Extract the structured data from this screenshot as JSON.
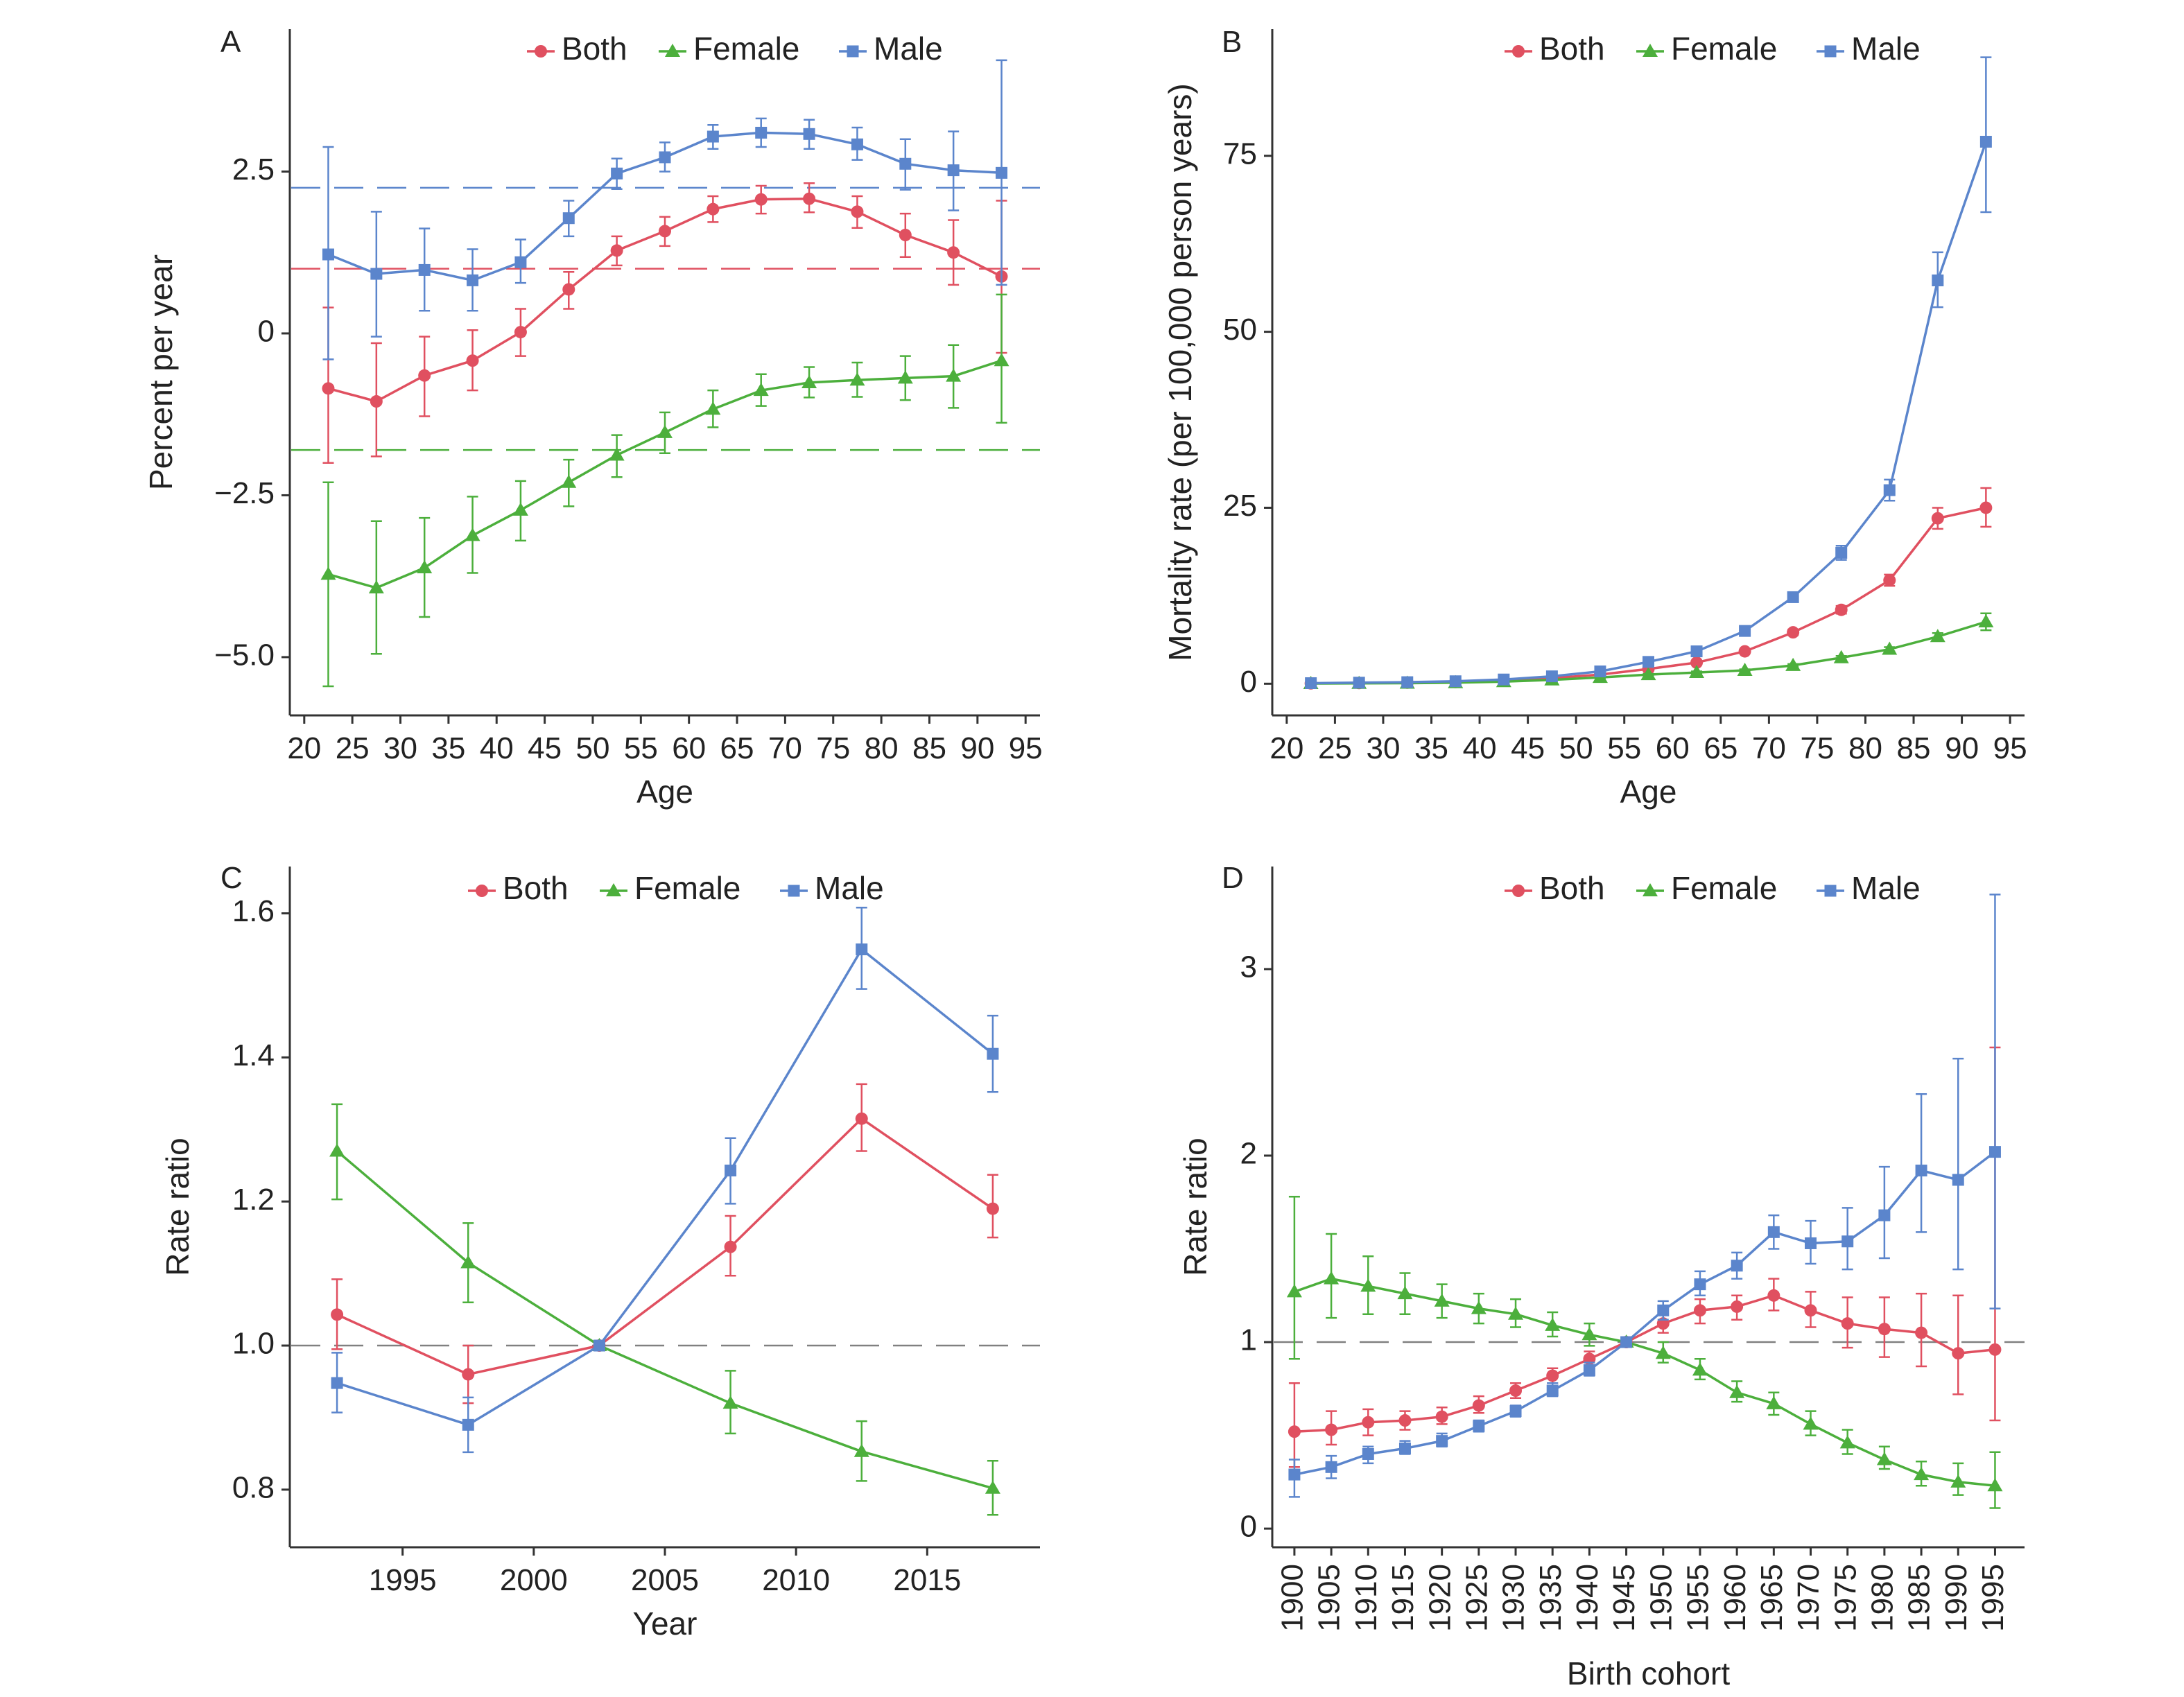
{
  "colors": {
    "Both": "#e05060",
    "Female": "#4caf3c",
    "Male": "#5b85cc",
    "reference_gray": "#808080"
  },
  "chart_data": [
    {
      "id": "A",
      "panel_label": "A",
      "type": "line",
      "xlabel": "Age",
      "ylabel": "Percent per year",
      "xlim": [
        18.5,
        96.5
      ],
      "ylim": [
        -5.9,
        4.7
      ],
      "x_ticks": [
        20,
        25,
        30,
        35,
        40,
        45,
        50,
        55,
        60,
        65,
        70,
        75,
        80,
        85,
        90,
        95
      ],
      "y_ticks": [
        2.5,
        0,
        -2.5,
        -5.0
      ],
      "y_tick_labels": [
        "2.5",
        "0",
        "−2.5",
        "−5.0"
      ],
      "legend": {
        "position": "top-center",
        "entries": [
          "Both",
          "Female",
          "Male"
        ]
      },
      "x": [
        22.5,
        27.5,
        32.5,
        37.5,
        42.5,
        47.5,
        52.5,
        57.5,
        62.5,
        67.5,
        72.5,
        77.5,
        82.5,
        87.5,
        92.5
      ],
      "reference_lines": [
        {
          "series": "Male",
          "y": 2.25
        },
        {
          "series": "Both",
          "y": 1.0
        },
        {
          "series": "Female",
          "y": -1.8
        }
      ],
      "series": [
        {
          "name": "Both",
          "marker": "circle",
          "values": [
            -0.85,
            -1.05,
            -0.65,
            -0.42,
            0.02,
            0.68,
            1.28,
            1.58,
            1.92,
            2.07,
            2.08,
            1.88,
            1.52,
            1.25,
            0.88
          ],
          "lower": [
            -2.0,
            -1.9,
            -1.28,
            -0.88,
            -0.35,
            0.38,
            1.05,
            1.35,
            1.72,
            1.85,
            1.87,
            1.63,
            1.18,
            0.75,
            -0.3
          ],
          "upper": [
            0.4,
            -0.15,
            -0.05,
            0.05,
            0.38,
            0.95,
            1.5,
            1.8,
            2.12,
            2.28,
            2.32,
            2.12,
            1.85,
            1.75,
            2.05
          ]
        },
        {
          "name": "Female",
          "marker": "triangle",
          "values": [
            -3.72,
            -3.93,
            -3.62,
            -3.12,
            -2.73,
            -2.3,
            -1.88,
            -1.53,
            -1.17,
            -0.88,
            -0.76,
            -0.72,
            -0.69,
            -0.66,
            -0.42
          ],
          "lower": [
            -5.45,
            -4.95,
            -4.38,
            -3.7,
            -3.2,
            -2.67,
            -2.22,
            -1.85,
            -1.45,
            -1.12,
            -0.99,
            -0.98,
            -1.03,
            -1.15,
            -1.38
          ],
          "upper": [
            -2.3,
            -2.9,
            -2.85,
            -2.52,
            -2.28,
            -1.95,
            -1.57,
            -1.22,
            -0.88,
            -0.63,
            -0.52,
            -0.45,
            -0.35,
            -0.18,
            0.6
          ]
        },
        {
          "name": "Male",
          "marker": "square",
          "values": [
            1.22,
            0.92,
            0.98,
            0.82,
            1.1,
            1.78,
            2.47,
            2.72,
            3.04,
            3.1,
            3.08,
            2.92,
            2.62,
            2.52,
            2.48
          ],
          "lower": [
            -0.4,
            -0.05,
            0.35,
            0.35,
            0.78,
            1.5,
            2.23,
            2.5,
            2.85,
            2.88,
            2.85,
            2.68,
            2.22,
            1.9,
            0.75
          ],
          "upper": [
            2.88,
            1.88,
            1.62,
            1.3,
            1.45,
            2.05,
            2.7,
            2.95,
            3.22,
            3.32,
            3.3,
            3.18,
            3.0,
            3.12,
            4.22
          ]
        }
      ]
    },
    {
      "id": "B",
      "panel_label": "B",
      "type": "line",
      "xlabel": "Age",
      "ylabel": "Mortality rate (per 100,000 person years)",
      "xlim": [
        18.5,
        96.5
      ],
      "ylim": [
        -4.5,
        93
      ],
      "x_ticks": [
        20,
        25,
        30,
        35,
        40,
        45,
        50,
        55,
        60,
        65,
        70,
        75,
        80,
        85,
        90,
        95
      ],
      "y_ticks": [
        0,
        25,
        50,
        75
      ],
      "y_tick_labels": [
        "0",
        "25",
        "50",
        "75"
      ],
      "legend": {
        "position": "top-center",
        "entries": [
          "Both",
          "Female",
          "Male"
        ]
      },
      "x": [
        22.5,
        27.5,
        32.5,
        37.5,
        42.5,
        47.5,
        52.5,
        57.5,
        62.5,
        67.5,
        72.5,
        77.5,
        82.5,
        87.5,
        92.5
      ],
      "series": [
        {
          "name": "Both",
          "marker": "circle",
          "values": [
            0.05,
            0.1,
            0.15,
            0.25,
            0.45,
            0.8,
            1.3,
            2.1,
            3.0,
            4.6,
            7.3,
            10.5,
            14.7,
            23.5,
            25.0
          ],
          "lower": [
            0.0,
            0.05,
            0.1,
            0.2,
            0.4,
            0.72,
            1.2,
            1.95,
            2.8,
            4.35,
            6.9,
            9.95,
            13.9,
            22.0,
            22.3
          ],
          "upper": [
            0.1,
            0.15,
            0.2,
            0.3,
            0.5,
            0.88,
            1.4,
            2.25,
            3.2,
            4.85,
            7.7,
            11.05,
            15.5,
            25.0,
            27.8
          ]
        },
        {
          "name": "Female",
          "marker": "triangle",
          "values": [
            0.03,
            0.05,
            0.08,
            0.15,
            0.3,
            0.55,
            0.9,
            1.3,
            1.6,
            1.9,
            2.6,
            3.7,
            4.9,
            6.7,
            8.8
          ],
          "lower": [
            0.0,
            0.02,
            0.05,
            0.1,
            0.25,
            0.48,
            0.8,
            1.2,
            1.45,
            1.75,
            2.4,
            3.45,
            4.6,
            6.2,
            7.6
          ],
          "upper": [
            0.06,
            0.08,
            0.11,
            0.2,
            0.35,
            0.62,
            1.0,
            1.4,
            1.75,
            2.05,
            2.8,
            3.95,
            5.2,
            7.2,
            10.0
          ]
        },
        {
          "name": "Male",
          "marker": "square",
          "values": [
            0.08,
            0.15,
            0.22,
            0.35,
            0.6,
            1.05,
            1.75,
            3.1,
            4.6,
            7.5,
            12.3,
            18.6,
            27.5,
            57.3,
            77.0
          ],
          "lower": [
            0.02,
            0.08,
            0.15,
            0.28,
            0.52,
            0.95,
            1.6,
            2.9,
            4.35,
            7.15,
            11.8,
            17.6,
            26.0,
            53.5,
            67.0
          ],
          "upper": [
            0.14,
            0.22,
            0.3,
            0.42,
            0.68,
            1.15,
            1.9,
            3.3,
            4.85,
            7.85,
            12.8,
            19.6,
            29.0,
            61.3,
            89.0
          ]
        }
      ]
    },
    {
      "id": "C",
      "panel_label": "C",
      "type": "line",
      "xlabel": "Year",
      "ylabel": "Rate ratio",
      "xlim": [
        1990.7,
        2019.3
      ],
      "ylim": [
        0.72,
        1.665
      ],
      "x_ticks": [
        1995,
        2000,
        2005,
        2010,
        2015
      ],
      "y_ticks": [
        0.8,
        1.0,
        1.2,
        1.4,
        1.6
      ],
      "y_tick_labels": [
        "0.8",
        "1.0",
        "1.2",
        "1.4",
        "1.6"
      ],
      "legend": {
        "position": "top-center",
        "entries": [
          "Both",
          "Female",
          "Male"
        ]
      },
      "x": [
        1992.5,
        1997.5,
        2002.5,
        2007.5,
        2012.5,
        2017.5
      ],
      "reference_lines": [
        {
          "series": "reference",
          "y": 1.0
        }
      ],
      "series": [
        {
          "name": "Both",
          "marker": "circle",
          "values": [
            1.043,
            0.96,
            1.0,
            1.137,
            1.315,
            1.19
          ],
          "lower": [
            0.995,
            0.92,
            1.0,
            1.097,
            1.27,
            1.15
          ],
          "upper": [
            1.092,
            1.0,
            1.0,
            1.18,
            1.363,
            1.237
          ]
        },
        {
          "name": "Female",
          "marker": "triangle",
          "values": [
            1.27,
            1.115,
            1.0,
            0.92,
            0.853,
            0.802
          ],
          "lower": [
            1.203,
            1.06,
            1.0,
            0.878,
            0.812,
            0.765
          ],
          "upper": [
            1.335,
            1.17,
            1.0,
            0.965,
            0.895,
            0.84
          ]
        },
        {
          "name": "Male",
          "marker": "square",
          "values": [
            0.948,
            0.89,
            1.0,
            1.243,
            1.55,
            1.405
          ],
          "lower": [
            0.907,
            0.852,
            1.0,
            1.197,
            1.495,
            1.352
          ],
          "upper": [
            0.99,
            0.928,
            1.0,
            1.288,
            1.608,
            1.458
          ]
        }
      ]
    },
    {
      "id": "D",
      "panel_label": "D",
      "type": "line",
      "xlabel": "Birth cohort",
      "ylabel": "Rate ratio",
      "xlim": [
        1897,
        1999
      ],
      "ylim": [
        -0.1,
        3.55
      ],
      "x_ticks": [
        1900,
        1905,
        1910,
        1915,
        1920,
        1925,
        1930,
        1935,
        1940,
        1945,
        1950,
        1955,
        1960,
        1965,
        1970,
        1975,
        1980,
        1985,
        1990,
        1995
      ],
      "x_tick_rotation": -90,
      "y_ticks": [
        0,
        1,
        2,
        3
      ],
      "y_tick_labels": [
        "0",
        "1",
        "2",
        "3"
      ],
      "legend": {
        "position": "top-center",
        "entries": [
          "Both",
          "Female",
          "Male"
        ]
      },
      "x": [
        1900,
        1905,
        1910,
        1915,
        1920,
        1925,
        1930,
        1935,
        1940,
        1945,
        1950,
        1955,
        1960,
        1965,
        1970,
        1975,
        1980,
        1985,
        1990,
        1995
      ],
      "reference_lines": [
        {
          "series": "reference",
          "y": 1.0
        }
      ],
      "series": [
        {
          "name": "Both",
          "marker": "circle",
          "values": [
            0.52,
            0.53,
            0.57,
            0.58,
            0.6,
            0.66,
            0.74,
            0.82,
            0.91,
            1.0,
            1.1,
            1.17,
            1.19,
            1.25,
            1.17,
            1.1,
            1.07,
            1.05,
            0.94,
            0.96
          ],
          "lower": [
            0.33,
            0.45,
            0.5,
            0.53,
            0.56,
            0.62,
            0.7,
            0.78,
            0.87,
            1.0,
            1.05,
            1.1,
            1.12,
            1.17,
            1.08,
            0.97,
            0.92,
            0.87,
            0.72,
            0.58
          ],
          "upper": [
            0.78,
            0.63,
            0.64,
            0.63,
            0.65,
            0.71,
            0.78,
            0.86,
            0.95,
            1.0,
            1.15,
            1.23,
            1.25,
            1.34,
            1.27,
            1.24,
            1.24,
            1.26,
            1.25,
            2.58
          ]
        },
        {
          "name": "Female",
          "marker": "triangle",
          "values": [
            1.27,
            1.34,
            1.3,
            1.26,
            1.22,
            1.18,
            1.15,
            1.09,
            1.04,
            1.0,
            0.94,
            0.85,
            0.73,
            0.67,
            0.56,
            0.46,
            0.37,
            0.29,
            0.25,
            0.23
          ],
          "lower": [
            0.91,
            1.13,
            1.15,
            1.15,
            1.13,
            1.1,
            1.08,
            1.03,
            0.98,
            1.0,
            0.89,
            0.8,
            0.68,
            0.61,
            0.5,
            0.4,
            0.32,
            0.23,
            0.18,
            0.11
          ],
          "upper": [
            1.78,
            1.58,
            1.46,
            1.37,
            1.31,
            1.26,
            1.23,
            1.16,
            1.1,
            1.0,
            1.0,
            0.91,
            0.79,
            0.73,
            0.63,
            0.53,
            0.44,
            0.36,
            0.35,
            0.41
          ]
        },
        {
          "name": "Male",
          "marker": "square",
          "values": [
            0.29,
            0.33,
            0.4,
            0.43,
            0.47,
            0.55,
            0.63,
            0.74,
            0.85,
            1.0,
            1.17,
            1.31,
            1.41,
            1.59,
            1.53,
            1.54,
            1.68,
            1.92,
            1.87,
            2.02
          ],
          "lower": [
            0.17,
            0.27,
            0.35,
            0.4,
            0.44,
            0.52,
            0.6,
            0.71,
            0.82,
            1.0,
            1.12,
            1.25,
            1.34,
            1.5,
            1.42,
            1.39,
            1.45,
            1.59,
            1.39,
            1.18
          ],
          "upper": [
            0.37,
            0.39,
            0.44,
            0.47,
            0.51,
            0.58,
            0.66,
            0.78,
            0.89,
            1.0,
            1.22,
            1.38,
            1.48,
            1.68,
            1.65,
            1.72,
            1.94,
            2.33,
            2.52,
            3.4
          ]
        }
      ]
    }
  ]
}
